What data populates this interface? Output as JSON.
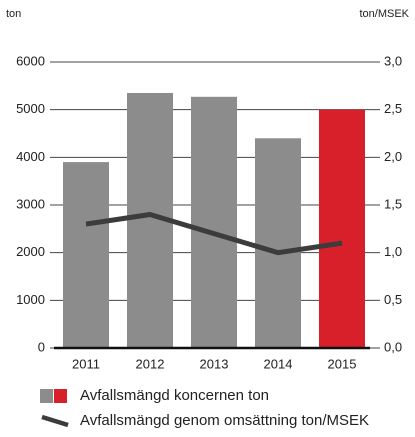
{
  "chart_data": {
    "type": "bar",
    "y_label": "ton",
    "y2_label": "ton/MSEK",
    "categories": [
      "2011",
      "2012",
      "2013",
      "2014",
      "2015"
    ],
    "series": [
      {
        "name": "Avfallsmängd koncernen ton",
        "type": "bar",
        "colors": [
          "#8c8c8c",
          "#8c8c8c",
          "#8c8c8c",
          "#8c8c8c",
          "#d7202a"
        ],
        "values": [
          3900,
          5350,
          5270,
          4400,
          5000
        ]
      },
      {
        "name": "Avfallsmängd genom omsättning ton/MSEK",
        "type": "line",
        "axis": "y2",
        "color": "#3c3c3c",
        "values": [
          1.3,
          1.4,
          1.2,
          1.0,
          1.1
        ]
      }
    ],
    "ylim": [
      0,
      6000
    ],
    "yticks": [
      0,
      1000,
      2000,
      3000,
      4000,
      5000,
      6000
    ],
    "y2lim": [
      0,
      3
    ],
    "y2ticks": [
      {
        "value": 0,
        "label": "0,0"
      },
      {
        "value": 0.5,
        "label": "0,5"
      },
      {
        "value": 1,
        "label": "1,0"
      },
      {
        "value": 1.5,
        "label": "1,5"
      },
      {
        "value": 2,
        "label": "2,0"
      },
      {
        "value": 2.5,
        "label": "2,5"
      },
      {
        "value": 3,
        "label": "3,0"
      }
    ],
    "grid": true
  }
}
